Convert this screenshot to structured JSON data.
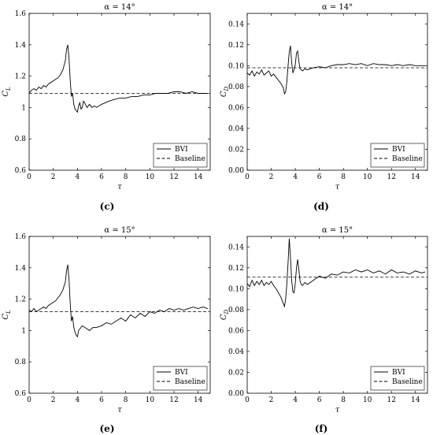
{
  "chart_data": [
    {
      "type": "line",
      "panel_label": "(c)",
      "title": "α = 14°",
      "xlabel": "τ",
      "ylabel": "C_L",
      "ylabel_main": "C",
      "ylabel_sub": "L",
      "xlim": [
        0,
        15
      ],
      "ylim": [
        0.6,
        1.6
      ],
      "xticks": [
        0,
        2,
        4,
        6,
        8,
        10,
        12,
        14
      ],
      "yticks": [
        0.6,
        0.8,
        1,
        1.2,
        1.4,
        1.6
      ],
      "ytick_labels": [
        "0.6",
        "0.8",
        "1",
        "1.2",
        "1.4",
        "1.6"
      ],
      "legend_position": "lower right",
      "series": [
        {
          "name": "BVI",
          "style": "solid",
          "x": [
            0,
            0.2,
            0.4,
            0.6,
            0.8,
            1.0,
            1.2,
            1.4,
            1.6,
            1.8,
            2.0,
            2.2,
            2.4,
            2.6,
            2.8,
            3.0,
            3.1,
            3.2,
            3.3,
            3.4,
            3.5,
            3.6,
            3.7,
            3.8,
            3.9,
            4.0,
            4.1,
            4.2,
            4.3,
            4.4,
            4.5,
            4.6,
            4.8,
            5.0,
            5.2,
            5.4,
            5.6,
            5.8,
            6.0,
            6.3,
            6.6,
            7.0,
            7.5,
            8.0,
            8.5,
            9.0,
            9.5,
            10.0,
            10.5,
            11.0,
            11.5,
            12.0,
            12.5,
            13.0,
            13.5,
            14.0,
            14.5,
            14.8
          ],
          "y": [
            1.09,
            1.11,
            1.12,
            1.11,
            1.13,
            1.12,
            1.14,
            1.13,
            1.15,
            1.16,
            1.17,
            1.18,
            1.19,
            1.21,
            1.24,
            1.3,
            1.37,
            1.4,
            1.32,
            1.18,
            1.07,
            1.09,
            1.02,
            0.99,
            0.98,
            0.97,
            1.01,
            1.03,
            0.99,
            1.0,
            1.04,
            1.03,
            1.0,
            1.02,
            1.0,
            1.01,
            1.0,
            1.01,
            1.02,
            1.03,
            1.04,
            1.05,
            1.06,
            1.06,
            1.07,
            1.07,
            1.08,
            1.08,
            1.09,
            1.09,
            1.09,
            1.1,
            1.1,
            1.09,
            1.1,
            1.09,
            1.09,
            1.09
          ]
        },
        {
          "name": "Baseline",
          "style": "dashed",
          "x": [
            0,
            15
          ],
          "y": [
            1.09,
            1.09
          ]
        }
      ]
    },
    {
      "type": "line",
      "panel_label": "(d)",
      "title": "α = 14°",
      "xlabel": "τ",
      "ylabel": "C_D",
      "ylabel_main": "C",
      "ylabel_sub": "D",
      "xlim": [
        0,
        15
      ],
      "ylim": [
        0,
        0.15
      ],
      "xticks": [
        0,
        2,
        4,
        6,
        8,
        10,
        12,
        14
      ],
      "yticks": [
        0,
        0.02,
        0.04,
        0.06,
        0.08,
        0.1,
        0.12,
        0.14
      ],
      "ytick_labels": [
        "0.00",
        "0.02",
        "0.04",
        "0.06",
        "0.08",
        "0.10",
        "0.12",
        "0.14"
      ],
      "legend_position": "lower right",
      "series": [
        {
          "name": "BVI",
          "style": "solid",
          "x": [
            0,
            0.2,
            0.4,
            0.6,
            0.8,
            1.0,
            1.2,
            1.4,
            1.6,
            1.8,
            2.0,
            2.2,
            2.4,
            2.6,
            2.8,
            3.0,
            3.1,
            3.2,
            3.3,
            3.4,
            3.5,
            3.6,
            3.7,
            3.8,
            3.9,
            4.0,
            4.1,
            4.2,
            4.3,
            4.4,
            4.5,
            4.6,
            4.8,
            5.0,
            5.5,
            6.0,
            6.5,
            7.0,
            7.5,
            8.0,
            8.5,
            9.0,
            9.5,
            10.0,
            10.5,
            11.0,
            11.5,
            12.0,
            12.5,
            13.0,
            13.5,
            14.0,
            14.5,
            14.8
          ],
          "y": [
            0.093,
            0.091,
            0.095,
            0.09,
            0.094,
            0.092,
            0.096,
            0.091,
            0.093,
            0.095,
            0.09,
            0.092,
            0.089,
            0.086,
            0.083,
            0.079,
            0.073,
            0.075,
            0.085,
            0.1,
            0.113,
            0.119,
            0.103,
            0.093,
            0.096,
            0.101,
            0.112,
            0.114,
            0.104,
            0.097,
            0.096,
            0.095,
            0.097,
            0.096,
            0.098,
            0.099,
            0.098,
            0.1,
            0.101,
            0.101,
            0.102,
            0.101,
            0.102,
            0.1,
            0.102,
            0.101,
            0.101,
            0.1,
            0.101,
            0.1,
            0.101,
            0.1,
            0.1,
            0.1
          ]
        },
        {
          "name": "Baseline",
          "style": "dashed",
          "x": [
            0,
            15
          ],
          "y": [
            0.098,
            0.098
          ]
        }
      ]
    },
    {
      "type": "line",
      "panel_label": "(e)",
      "title": "α = 15°",
      "xlabel": "τ",
      "ylabel": "C_L",
      "ylabel_main": "C",
      "ylabel_sub": "L",
      "xlim": [
        0,
        15
      ],
      "ylim": [
        0.6,
        1.6
      ],
      "xticks": [
        0,
        2,
        4,
        6,
        8,
        10,
        12,
        14
      ],
      "yticks": [
        0.6,
        0.8,
        1,
        1.2,
        1.4,
        1.6
      ],
      "ytick_labels": [
        "0.6",
        "0.8",
        "1",
        "1.2",
        "1.4",
        "1.6"
      ],
      "legend_position": "lower right",
      "series": [
        {
          "name": "BVI",
          "style": "solid",
          "x": [
            0,
            0.2,
            0.4,
            0.6,
            0.8,
            1.0,
            1.2,
            1.4,
            1.6,
            1.8,
            2.0,
            2.2,
            2.4,
            2.6,
            2.8,
            3.0,
            3.1,
            3.2,
            3.3,
            3.4,
            3.5,
            3.6,
            3.7,
            3.8,
            3.9,
            4.0,
            4.1,
            4.2,
            4.4,
            4.6,
            4.8,
            5.0,
            5.3,
            5.6,
            6.0,
            6.4,
            6.8,
            7.2,
            7.6,
            8.0,
            8.4,
            8.8,
            9.2,
            9.6,
            10.0,
            10.4,
            10.8,
            11.2,
            11.6,
            12.0,
            12.4,
            12.8,
            13.2,
            13.6,
            14.0,
            14.4,
            14.8
          ],
          "y": [
            1.13,
            1.12,
            1.14,
            1.12,
            1.13,
            1.14,
            1.15,
            1.14,
            1.16,
            1.17,
            1.18,
            1.19,
            1.21,
            1.23,
            1.26,
            1.31,
            1.38,
            1.42,
            1.33,
            1.18,
            1.06,
            1.09,
            1.02,
            0.99,
            0.97,
            0.96,
            1.0,
            1.01,
            1.03,
            1.02,
            1.01,
            1.0,
            1.02,
            1.02,
            1.03,
            1.05,
            1.04,
            1.06,
            1.08,
            1.06,
            1.1,
            1.08,
            1.11,
            1.09,
            1.12,
            1.11,
            1.13,
            1.12,
            1.14,
            1.13,
            1.14,
            1.13,
            1.14,
            1.15,
            1.14,
            1.15,
            1.14
          ]
        },
        {
          "name": "Baseline",
          "style": "dashed",
          "x": [
            0,
            15
          ],
          "y": [
            1.12,
            1.12
          ]
        }
      ]
    },
    {
      "type": "line",
      "panel_label": "(f)",
      "title": "α = 15°",
      "xlabel": "τ",
      "ylabel": "C_D",
      "ylabel_main": "C",
      "ylabel_sub": "D",
      "xlim": [
        0,
        15
      ],
      "ylim": [
        0,
        0.15
      ],
      "xticks": [
        0,
        2,
        4,
        6,
        8,
        10,
        12,
        14
      ],
      "yticks": [
        0,
        0.02,
        0.04,
        0.06,
        0.08,
        0.1,
        0.12,
        0.14
      ],
      "ytick_labels": [
        "0.00",
        "0.02",
        "0.04",
        "0.06",
        "0.08",
        "0.10",
        "0.12",
        "0.14"
      ],
      "legend_position": "lower right",
      "series": [
        {
          "name": "BVI",
          "style": "solid",
          "x": [
            0,
            0.2,
            0.4,
            0.6,
            0.8,
            1.0,
            1.2,
            1.4,
            1.6,
            1.8,
            2.0,
            2.2,
            2.4,
            2.6,
            2.8,
            3.0,
            3.1,
            3.2,
            3.3,
            3.4,
            3.5,
            3.6,
            3.7,
            3.8,
            3.9,
            4.0,
            4.1,
            4.2,
            4.3,
            4.4,
            4.5,
            4.6,
            4.8,
            5.0,
            5.5,
            6.0,
            6.5,
            7.0,
            7.5,
            8.0,
            8.5,
            9.0,
            9.5,
            10.0,
            10.5,
            11.0,
            11.5,
            12.0,
            12.5,
            13.0,
            13.5,
            14.0,
            14.5,
            14.8
          ],
          "y": [
            0.105,
            0.102,
            0.108,
            0.103,
            0.107,
            0.104,
            0.108,
            0.103,
            0.106,
            0.104,
            0.107,
            0.103,
            0.1,
            0.096,
            0.092,
            0.086,
            0.083,
            0.09,
            0.105,
            0.125,
            0.148,
            0.13,
            0.108,
            0.097,
            0.096,
            0.105,
            0.12,
            0.128,
            0.118,
            0.107,
            0.104,
            0.103,
            0.106,
            0.104,
            0.108,
            0.112,
            0.11,
            0.114,
            0.113,
            0.116,
            0.115,
            0.118,
            0.116,
            0.118,
            0.115,
            0.117,
            0.114,
            0.118,
            0.115,
            0.116,
            0.114,
            0.117,
            0.115,
            0.116
          ]
        },
        {
          "name": "Baseline",
          "style": "dashed",
          "x": [
            0,
            15
          ],
          "y": [
            0.111,
            0.111
          ]
        }
      ]
    }
  ]
}
